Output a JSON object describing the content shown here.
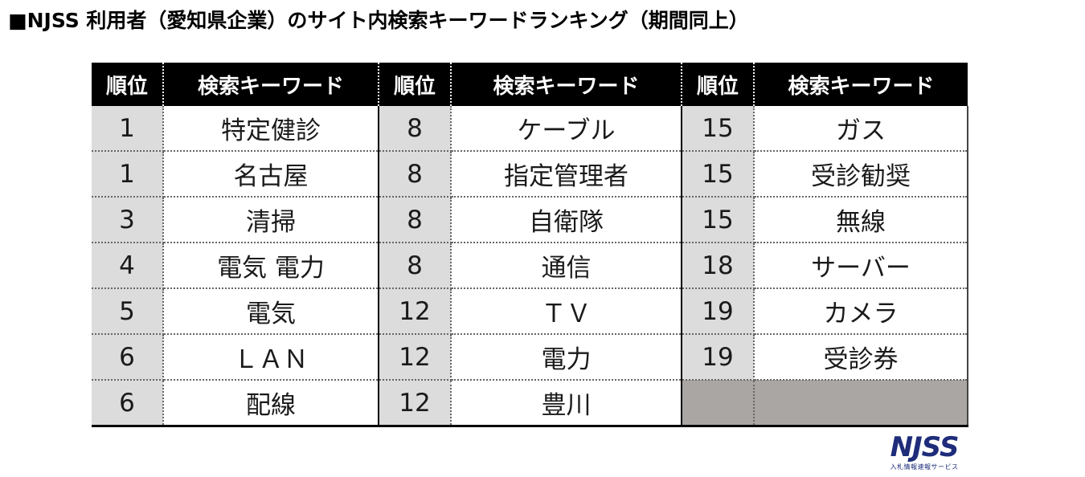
{
  "title": "■NJSS 利用者（愛知県企業）のサイト内検索キーワードランキング（期間同上）",
  "headers": [
    "順位",
    "検索キーワード",
    "順位",
    "検索キーワード",
    "順位",
    "検索キーワード"
  ],
  "rows": [
    [
      "1",
      "特定健診",
      "8",
      "ケーブル",
      "15",
      "ガス"
    ],
    [
      "1",
      "名古屋",
      "8",
      "指定管理者",
      "15",
      "受診勧奨"
    ],
    [
      "3",
      "清掃",
      "8",
      "自衛隊",
      "15",
      "無線"
    ],
    [
      "4",
      "電気 電力",
      "8",
      "通信",
      "18",
      "サーバー"
    ],
    [
      "5",
      "電気",
      "12",
      "ＴＶ",
      "19",
      "カメラ"
    ],
    [
      "6",
      "ＬＡＮ",
      "12",
      "電力",
      "19",
      "受診券"
    ],
    [
      "6",
      "配線",
      "12",
      "豊川",
      "",
      ""
    ]
  ],
  "logo": {
    "mark": "NJSS",
    "subtitle": "入札情報速報サービス"
  },
  "colors": {
    "header_bg": "#000000",
    "rank_cell_bg": "#dcdcdc",
    "empty_cell_bg": "#a9a6a3",
    "logo": "#1e2c7a"
  }
}
